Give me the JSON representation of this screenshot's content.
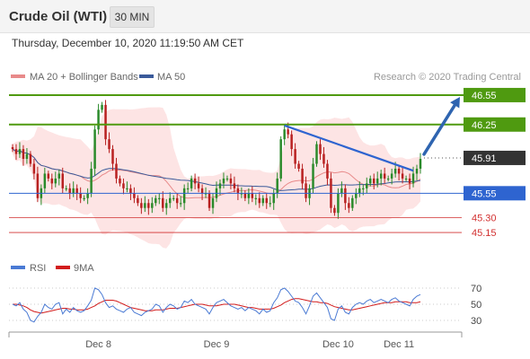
{
  "header": {
    "instrument": "Crude Oil (WTI)",
    "timeframe": "30 MIN"
  },
  "datetime": "Thursday, December 10, 2020 11:19:50 AM CET",
  "colors": {
    "support_resistance_green": "#4f9a10",
    "pivot_blue": "#2e64d0",
    "current_price_bg": "#333333",
    "minor_level_red": "#d23030",
    "bollinger_fill": "#fde4e4",
    "ma20": "#e88a8a",
    "ma50": "#3a5a9a",
    "candle_up": "#2a8a2a",
    "candle_down": "#b82020",
    "rsi": "#4a7ad4",
    "rsi_ma": "#d21c1c",
    "forecast_arrow": "#2e64b0"
  },
  "chart_data": [
    {
      "type": "candlestick",
      "legend": [
        "MA 20 + Bollinger Bands",
        "MA 50"
      ],
      "legend_position": "top-left",
      "watermark": "Research © 2020 Trading Central",
      "x_ticks": [
        "Dec 8",
        "Dec 9",
        "Dec 10",
        "Dec 11"
      ],
      "y_range": [
        45.05,
        46.65
      ],
      "price_levels": [
        {
          "value": 46.55,
          "label": "46.55",
          "style": "resistance"
        },
        {
          "value": 46.25,
          "label": "46.25",
          "style": "resistance"
        },
        {
          "value": 45.91,
          "label": "45.91",
          "style": "current"
        },
        {
          "value": 45.55,
          "label": "45.55",
          "style": "pivot"
        },
        {
          "value": 45.3,
          "label": "45.30",
          "style": "minor"
        },
        {
          "value": 45.15,
          "label": "45.15",
          "style": "minor"
        }
      ],
      "forecast": {
        "direction": "up",
        "from": 45.91,
        "to": 46.55
      },
      "close_series": [
        46.0,
        45.95,
        46.0,
        45.9,
        45.95,
        45.85,
        45.75,
        45.5,
        45.6,
        45.75,
        45.7,
        45.65,
        45.7,
        45.75,
        45.6,
        45.6,
        45.55,
        45.6,
        45.55,
        45.5,
        45.5,
        45.55,
        45.8,
        46.2,
        46.4,
        46.45,
        46.1,
        46.0,
        45.85,
        45.7,
        45.65,
        45.6,
        45.6,
        45.55,
        45.5,
        45.45,
        45.4,
        45.45,
        45.4,
        45.45,
        45.5,
        45.5,
        45.4,
        45.45,
        45.5,
        45.5,
        45.45,
        45.45,
        45.6,
        45.6,
        45.7,
        45.65,
        45.6,
        45.55,
        45.55,
        45.4,
        45.5,
        45.6,
        45.65,
        45.7,
        45.7,
        45.65,
        45.6,
        45.55,
        45.55,
        45.5,
        45.55,
        45.5,
        45.5,
        45.45,
        45.5,
        45.45,
        45.45,
        45.55,
        45.7,
        46.1,
        46.2,
        46.15,
        46.0,
        45.85,
        45.8,
        45.65,
        45.5,
        45.6,
        45.85,
        46.05,
        45.95,
        45.85,
        45.7,
        45.4,
        45.35,
        45.55,
        45.6,
        45.45,
        45.4,
        45.5,
        45.55,
        45.6,
        45.6,
        45.65,
        45.7,
        45.65,
        45.7,
        45.75,
        45.7,
        45.7,
        45.75,
        45.8,
        45.75,
        45.7,
        45.7,
        45.65,
        45.75,
        45.8,
        45.9
      ]
    },
    {
      "type": "line",
      "legend": [
        "RSI",
        "9MA"
      ],
      "legend_position": "top-left",
      "y_ticks": [
        70,
        50,
        30
      ],
      "y_range": [
        20,
        80
      ],
      "rsi_series": [
        50,
        48,
        52,
        44,
        40,
        30,
        28,
        35,
        40,
        50,
        46,
        44,
        50,
        52,
        38,
        44,
        40,
        46,
        42,
        40,
        42,
        48,
        55,
        70,
        68,
        62,
        52,
        46,
        48,
        44,
        42,
        40,
        44,
        46,
        40,
        38,
        36,
        40,
        42,
        44,
        50,
        48,
        40,
        46,
        50,
        48,
        44,
        46,
        54,
        52,
        56,
        50,
        48,
        46,
        44,
        38,
        46,
        52,
        54,
        56,
        52,
        48,
        46,
        44,
        46,
        42,
        46,
        44,
        42,
        38,
        44,
        40,
        42,
        52,
        58,
        68,
        70,
        66,
        60,
        54,
        52,
        46,
        38,
        48,
        60,
        64,
        58,
        52,
        46,
        32,
        30,
        44,
        48,
        40,
        38,
        46,
        50,
        52,
        50,
        54,
        56,
        52,
        54,
        56,
        54,
        52,
        56,
        58,
        54,
        52,
        50,
        48,
        56,
        60,
        62
      ],
      "rsi_ma_series": [
        50,
        50,
        49,
        48,
        46,
        43,
        41,
        40,
        39,
        40,
        41,
        42,
        43,
        44,
        45,
        45,
        44,
        44,
        43,
        43,
        43,
        44,
        46,
        48,
        51,
        53,
        55,
        55,
        55,
        54,
        52,
        50,
        48,
        46,
        45,
        44,
        43,
        42,
        42,
        42,
        43,
        43,
        43,
        44,
        45,
        45,
        45,
        46,
        47,
        48,
        49,
        50,
        50,
        50,
        49,
        48,
        48,
        48,
        49,
        50,
        50,
        50,
        50,
        49,
        48,
        47,
        46,
        46,
        45,
        44,
        44,
        44,
        44,
        45,
        47,
        49,
        52,
        54,
        56,
        57,
        57,
        56,
        55,
        54,
        53,
        53,
        52,
        52,
        51,
        49,
        47,
        46,
        45,
        44,
        43,
        43,
        44,
        45,
        46,
        47,
        48,
        49,
        50,
        51,
        52,
        52,
        52,
        53,
        53,
        53,
        53,
        52,
        52,
        52,
        53
      ]
    }
  ]
}
